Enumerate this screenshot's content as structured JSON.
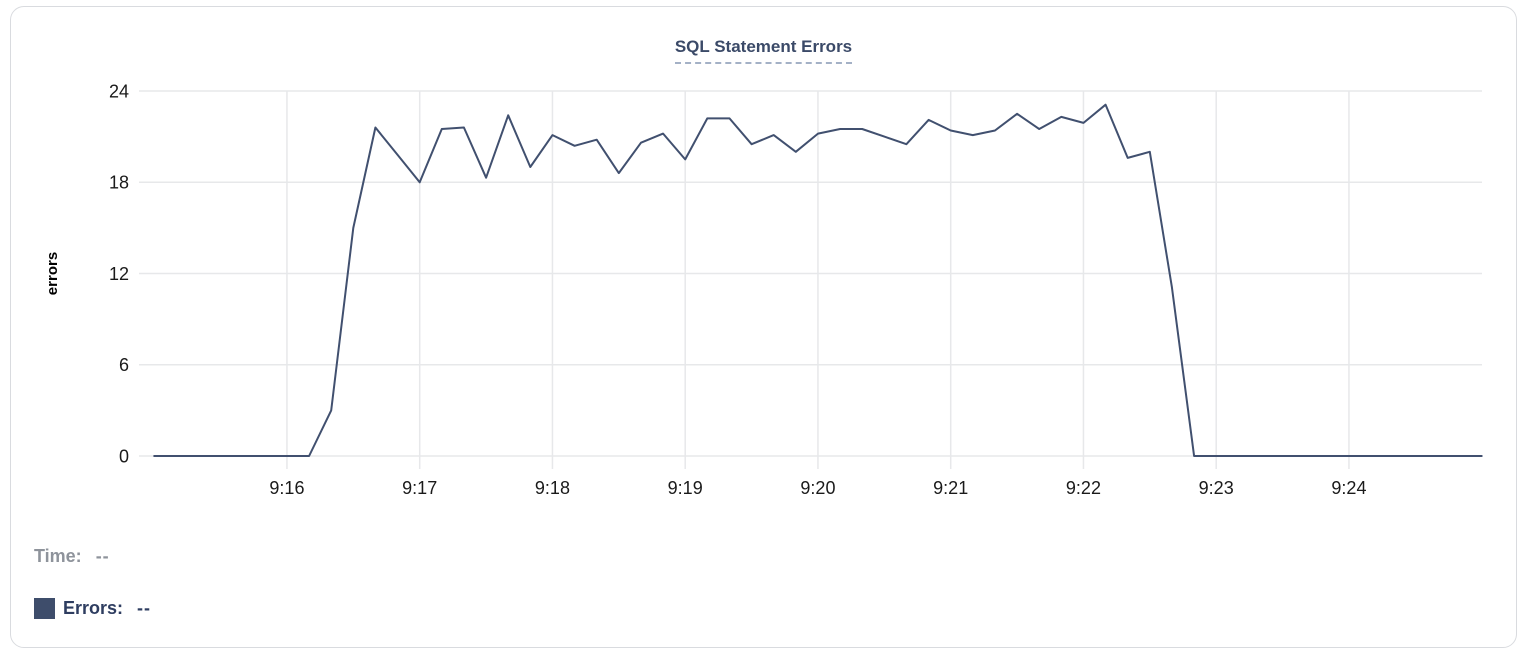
{
  "card": {
    "title": "SQL Statement Errors"
  },
  "colors": {
    "series_line": "#41506f",
    "title_text": "#3b4a68",
    "title_underline": "#a4b1c6",
    "grid": "#e7e8ea",
    "tick_label": "#1a1a1a",
    "axis_title": "#000000",
    "muted_text": "#8e939b",
    "legend_text": "#2e3d60",
    "swatch": "#3e4d6b",
    "card_border": "#d9dbdf"
  },
  "legend": {
    "time_label": "Time:",
    "time_value": "--",
    "errors_label": "Errors:",
    "errors_value": "--"
  },
  "chart_data": {
    "type": "line",
    "title": "SQL Statement Errors",
    "xlabel": "",
    "ylabel": "errors",
    "ylim": [
      0,
      24
    ],
    "yticks": [
      0,
      6,
      12,
      18,
      24
    ],
    "x_tick_labels": [
      "9:16",
      "9:17",
      "9:18",
      "9:19",
      "9:20",
      "9:21",
      "9:22",
      "9:23",
      "9:24"
    ],
    "x_start": "9:15:00",
    "x_end": "9:25:00",
    "sample_interval_seconds": 10,
    "grid": true,
    "legend_position": "bottom-left",
    "series": [
      {
        "name": "Errors",
        "values": [
          0,
          0,
          0,
          0,
          0,
          0,
          0,
          0,
          3,
          15,
          21.6,
          19.8,
          18,
          21.5,
          21.6,
          18.3,
          22.4,
          19,
          21.1,
          20.4,
          20.8,
          18.6,
          20.6,
          21.2,
          19.5,
          22.2,
          22.2,
          20.5,
          21.1,
          20,
          21.2,
          21.5,
          21.5,
          21,
          20.5,
          22.1,
          21.4,
          21.1,
          21.4,
          22.5,
          21.5,
          22.3,
          21.9,
          23.1,
          19.6,
          20,
          11.1,
          0,
          0,
          0,
          0,
          0,
          0,
          0,
          0,
          0,
          0,
          0,
          0,
          0,
          0
        ]
      }
    ]
  }
}
